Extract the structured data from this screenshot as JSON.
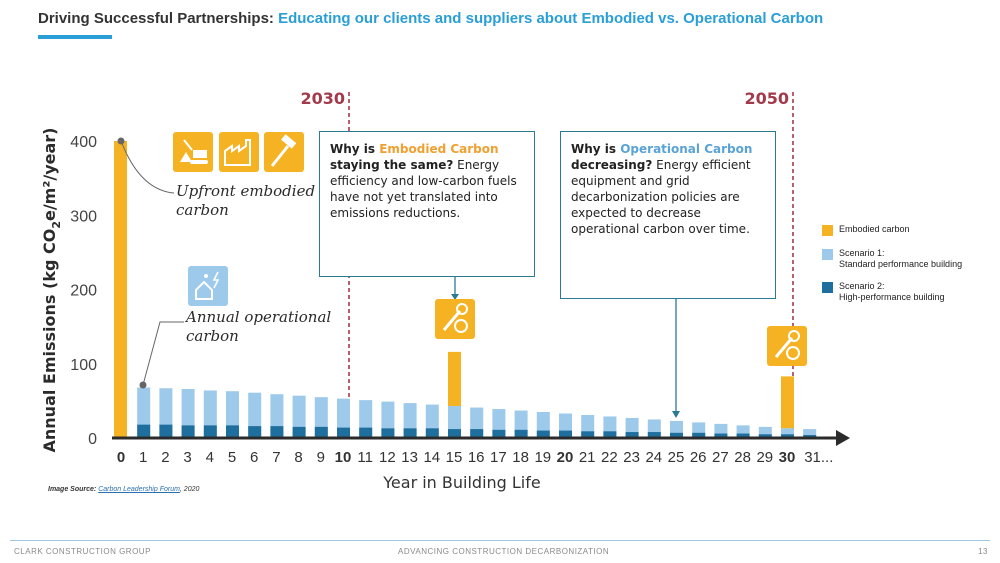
{
  "slide": {
    "title_lead": "Driving Successful Partnerships:",
    "title_accent": "Educating our clients and suppliers about Embodied vs. Operational Carbon",
    "footer_left": "CLARK CONSTRUCTION GROUP",
    "footer_center": "ADVANCING CONSTRUCTION DECARBONIZATION",
    "page_number": "13",
    "source_label": "Image Source:",
    "source_link": "Carbon Leadership Forum",
    "source_year": ", 2020"
  },
  "callouts": {
    "embodied": {
      "q1": "Why is ",
      "q2": "Embodied Carbon",
      "q3": " staying the same?",
      "body": " Energy efficiency and low-carbon fuels have not yet translated into emissions reductions."
    },
    "operational": {
      "q1": "Why is ",
      "q2": "Operational Carbon",
      "q3": " decreasing?",
      "body": " Energy efficient equipment and grid decarbonization policies are expected to decrease operational carbon over time."
    }
  },
  "annotations": {
    "upfront": "Upfront embodied carbon",
    "operational": "Annual operational carbon"
  },
  "icons": [
    "construction-icon",
    "factory-icon",
    "hammer-icon",
    "house-energy-icon",
    "wrench-gear-icon"
  ],
  "colors": {
    "embodied": "#f5b324",
    "scenario1": "#9dc9ea",
    "scenario2": "#1f6f9e",
    "milestone": "#a33a4a",
    "axis": "#2b2b2b"
  },
  "chart_data": {
    "type": "bar",
    "xlabel": "Year in Building Life",
    "ylabel": "Annual Emissions (kg CO2e/m²/year)",
    "ylabel_parts": [
      "Annual Emissions (kg CO",
      "2",
      "e/m²/year)"
    ],
    "ylim": [
      0,
      400
    ],
    "yticks": [
      "0",
      "100",
      "200",
      "300",
      "400"
    ],
    "categories": [
      "0",
      "1",
      "2",
      "3",
      "4",
      "5",
      "6",
      "7",
      "8",
      "9",
      "10",
      "11",
      "12",
      "13",
      "14",
      "15",
      "16",
      "17",
      "18",
      "19",
      "20",
      "21",
      "22",
      "23",
      "24",
      "25",
      "26",
      "27",
      "28",
      "29",
      "30",
      "31..."
    ],
    "bold_categories": [
      "0",
      "10",
      "20",
      "30"
    ],
    "milestones": [
      {
        "label": "2030",
        "year": 10
      },
      {
        "label": "2050",
        "year": 30
      }
    ],
    "series": [
      {
        "name": "Embodied carbon",
        "values": [
          400,
          0,
          0,
          0,
          0,
          0,
          0,
          0,
          0,
          0,
          0,
          0,
          0,
          0,
          0,
          73,
          0,
          0,
          0,
          0,
          0,
          0,
          0,
          0,
          0,
          0,
          0,
          0,
          0,
          0,
          70,
          0
        ]
      },
      {
        "name": "Scenario 1: Standard performance building",
        "values": [
          70,
          68,
          67,
          66,
          64,
          63,
          61,
          59,
          57,
          55,
          53,
          51,
          49,
          47,
          45,
          43,
          41,
          39,
          37,
          35,
          33,
          31,
          29,
          27,
          25,
          23,
          21,
          19,
          17,
          15,
          13,
          12
        ]
      },
      {
        "name": "Scenario 2: High-performance building",
        "values": [
          19,
          18,
          18,
          17,
          17,
          17,
          16,
          16,
          15,
          15,
          14,
          14,
          13,
          13,
          13,
          12,
          12,
          11,
          11,
          10,
          10,
          9,
          9,
          8,
          8,
          7,
          7,
          6,
          6,
          5,
          5,
          4
        ]
      }
    ],
    "legend": [
      {
        "line1": "Embodied carbon",
        "line2": ""
      },
      {
        "line1": "Scenario 1:",
        "line2": "Standard performance building"
      },
      {
        "line1": "Scenario 2:",
        "line2": "High-performance building"
      }
    ]
  }
}
